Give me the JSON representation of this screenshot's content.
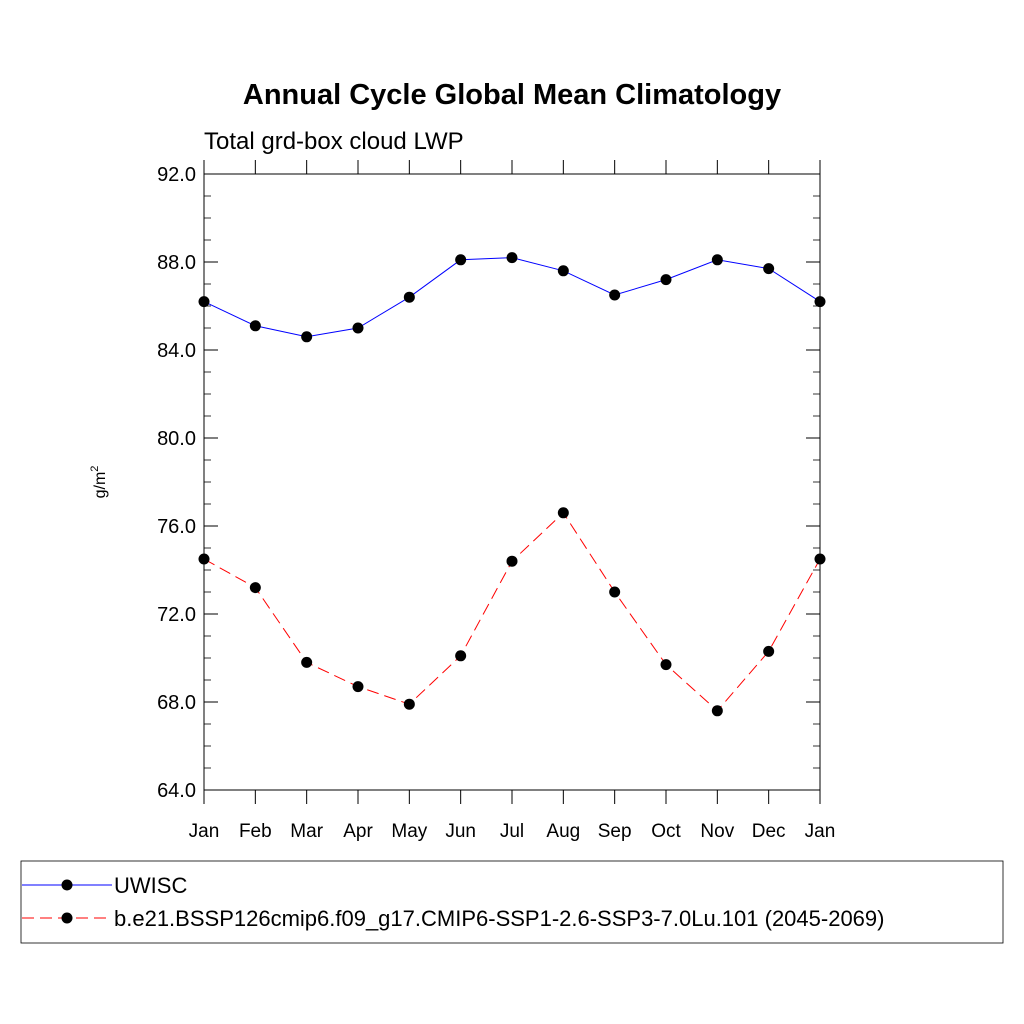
{
  "chart_data": {
    "type": "line",
    "title": "Annual Cycle Global Mean Climatology",
    "subtitle": "Total grd-box cloud LWP",
    "ylabel": "g/m",
    "ylabel_sup": "2",
    "ylim": [
      64.0,
      92.0
    ],
    "yticks": [
      "64.0",
      "68.0",
      "72.0",
      "76.0",
      "80.0",
      "84.0",
      "88.0",
      "92.0"
    ],
    "categories": [
      "Jan",
      "Feb",
      "Mar",
      "Apr",
      "May",
      "Jun",
      "Jul",
      "Aug",
      "Sep",
      "Oct",
      "Nov",
      "Dec",
      "Jan"
    ],
    "series": [
      {
        "name": "UWISC",
        "color": "#0000ff",
        "style": "solid",
        "values": [
          86.2,
          85.1,
          84.6,
          85.0,
          86.4,
          88.1,
          88.2,
          87.6,
          86.5,
          87.2,
          88.1,
          87.7,
          86.2
        ]
      },
      {
        "name": "b.e21.BSSP126cmip6.f09_g17.CMIP6-SSP1-2.6-SSP3-7.0Lu.101 (2045-2069)",
        "color": "#ff0000",
        "style": "dashed",
        "values": [
          74.5,
          73.2,
          69.8,
          68.7,
          67.9,
          70.1,
          74.4,
          76.6,
          73.0,
          69.7,
          67.6,
          70.3,
          74.5
        ]
      }
    ],
    "legend": "bottom",
    "grid": false
  }
}
